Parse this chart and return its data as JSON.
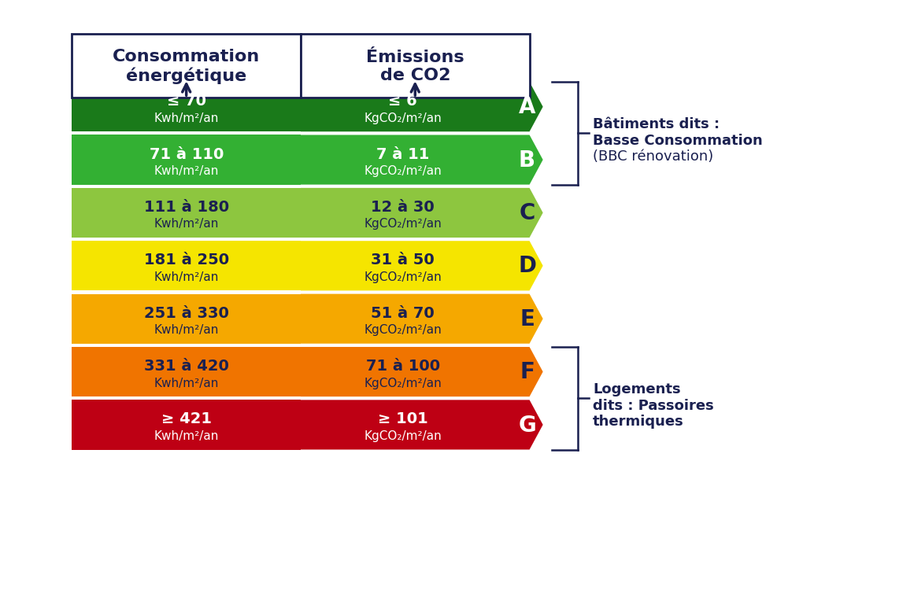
{
  "classes": [
    "A",
    "B",
    "C",
    "D",
    "E",
    "F",
    "G"
  ],
  "energy_labels_line1": [
    "≤ 70",
    "71 à 110",
    "111 à 180",
    "181 à 250",
    "251 à 330",
    "331 à 420",
    "≥ 421"
  ],
  "energy_labels_line2": [
    "Kwh/m²/an",
    "Kwh/m²/an",
    "Kwh/m²/an",
    "Kwh/m²/an",
    "Kwh/m²/an",
    "Kwh/m²/an",
    "Kwh/m²/an"
  ],
  "co2_labels_line1": [
    "≤ 6",
    "7 à 11",
    "12 à 30",
    "31 à 50",
    "51 à 70",
    "71 à 100",
    "≥ 101"
  ],
  "co2_labels_line2": [
    "KgCO₂/m²/an",
    "KgCO₂/m²/an",
    "KgCO₂/m²/an",
    "KgCO₂/m²/an",
    "KgCO₂/m²/an",
    "KgCO₂/m²/an",
    "KgCO₂/m²/an"
  ],
  "bar_colors": [
    "#1a7a1a",
    "#33b033",
    "#8dc63f",
    "#f5e500",
    "#f5a800",
    "#f07400",
    "#be0014"
  ],
  "label_colors_energy": [
    "white",
    "white",
    "#1a2050",
    "#1a2050",
    "#1a2050",
    "#1a2050",
    "white"
  ],
  "label_colors_co2": [
    "white",
    "white",
    "#1a2050",
    "#1a2050",
    "#1a2050",
    "#1a2050",
    "white"
  ],
  "letter_bg_colors": [
    "#1a7a1a",
    "#33b033",
    "#8dc63f",
    "#f5e500",
    "#f5a800",
    "#f07400",
    "#be0014"
  ],
  "letter_colors": [
    "white",
    "white",
    "#1a2050",
    "#1a2050",
    "#1a2050",
    "#1a2050",
    "white"
  ],
  "background_color": "white",
  "header_energy": "Consommation\nénergétique",
  "header_co2": "Émissions\nde CO2",
  "bbc_label_line1": "Bâtiments dits :",
  "bbc_label_line2": "Basse Consommation",
  "bbc_label_line3": "(BBC rénovation)",
  "passoire_label_line1": "Logements",
  "passoire_label_line2": "dits : Passoires",
  "passoire_label_line3": "thermiques",
  "text_color": "#1a2050"
}
